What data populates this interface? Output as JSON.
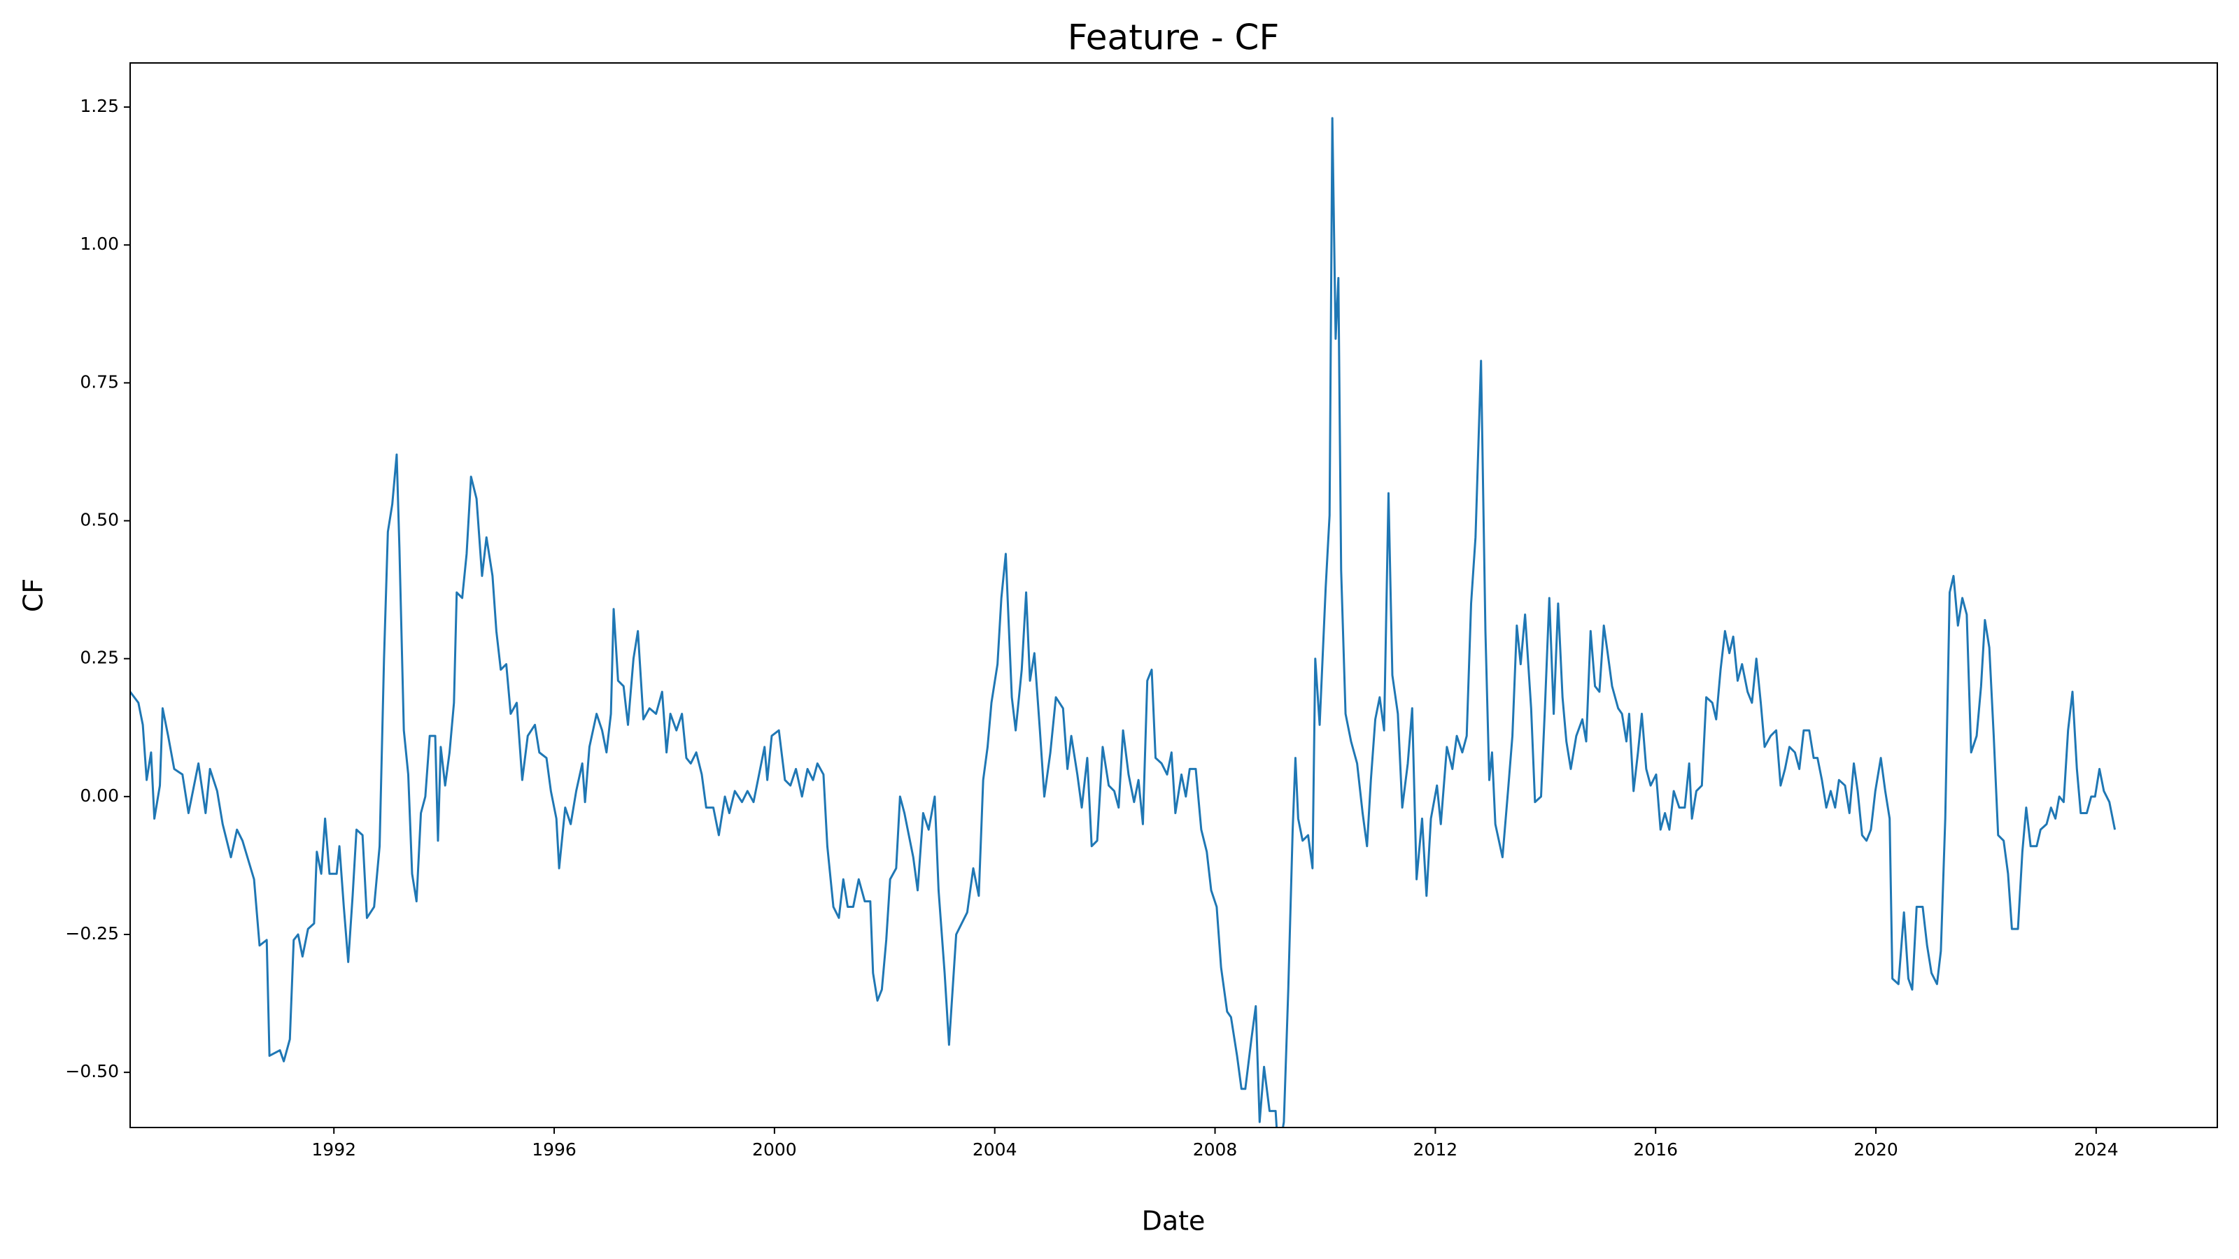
{
  "chart_data": {
    "type": "line",
    "title": "Feature - CF",
    "x_label": "Date",
    "y_label": "CF",
    "color": "#1f77b4",
    "xlim": [
      1988.3,
      2026.2
    ],
    "ylim": [
      -0.6,
      1.33
    ],
    "xticks": [
      1992,
      1996,
      2000,
      2004,
      2008,
      2012,
      2016,
      2020,
      2024
    ],
    "yticks": [
      {
        "value": -0.5,
        "label": "−0.50"
      },
      {
        "value": -0.25,
        "label": "−0.25"
      },
      {
        "value": 0,
        "label": "0.00"
      },
      0.25,
      {
        "value": 0.5,
        "label": "0.50"
      },
      0.75,
      {
        "value": 1,
        "label": "1.00"
      },
      1.25
    ],
    "x": [
      1988.3,
      1988.45,
      1988.53,
      1988.6,
      1988.68,
      1988.74,
      1988.84,
      1988.89,
      1988.99,
      1989.1,
      1989.25,
      1989.36,
      1989.54,
      1989.67,
      1989.75,
      1989.88,
      1989.98,
      1990.13,
      1990.24,
      1990.34,
      1990.55,
      1990.65,
      1990.78,
      1990.83,
      1991.02,
      1991.09,
      1991.2,
      1991.27,
      1991.35,
      1991.43,
      1991.53,
      1991.64,
      1991.69,
      1991.77,
      1991.84,
      1991.92,
      1992.05,
      1992.1,
      1992.18,
      1992.26,
      1992.34,
      1992.41,
      1992.52,
      1992.6,
      1992.73,
      1992.83,
      1992.91,
      1992.98,
      1993.06,
      1993.14,
      1993.19,
      1993.27,
      1993.35,
      1993.42,
      1993.5,
      1993.58,
      1993.66,
      1993.74,
      1993.84,
      1993.89,
      1993.94,
      1994.02,
      1994.1,
      1994.18,
      1994.23,
      1994.33,
      1994.41,
      1994.49,
      1994.59,
      1994.69,
      1994.77,
      1994.88,
      1994.95,
      1995.03,
      1995.13,
      1995.21,
      1995.32,
      1995.42,
      1995.52,
      1995.65,
      1995.73,
      1995.86,
      1995.94,
      1996.04,
      1996.09,
      1996.2,
      1996.3,
      1996.4,
      1996.51,
      1996.56,
      1996.64,
      1996.77,
      1996.87,
      1996.95,
      1997.03,
      1997.08,
      1997.16,
      1997.26,
      1997.34,
      1997.44,
      1997.52,
      1997.62,
      1997.73,
      1997.85,
      1997.96,
      1998.04,
      1998.11,
      1998.22,
      1998.32,
      1998.4,
      1998.48,
      1998.58,
      1998.68,
      1998.76,
      1998.89,
      1998.99,
      1999.1,
      1999.18,
      1999.28,
      1999.41,
      1999.51,
      1999.62,
      1999.72,
      1999.82,
      1999.87,
      1999.95,
      2000.08,
      2000.19,
      2000.29,
      2000.39,
      2000.5,
      2000.6,
      2000.7,
      2000.78,
      2000.89,
      2000.96,
      2001.07,
      2001.17,
      2001.25,
      2001.33,
      2001.43,
      2001.53,
      2001.64,
      2001.74,
      2001.79,
      2001.87,
      2001.95,
      2002.03,
      2002.1,
      2002.21,
      2002.28,
      2002.36,
      2002.44,
      2002.52,
      2002.6,
      2002.7,
      2002.8,
      2002.91,
      2002.98,
      2003.09,
      2003.17,
      2003.3,
      2003.4,
      2003.5,
      2003.61,
      2003.71,
      2003.79,
      2003.87,
      2003.94,
      2004.05,
      2004.12,
      2004.2,
      2004.31,
      2004.38,
      2004.49,
      2004.57,
      2004.64,
      2004.72,
      2004.82,
      2004.9,
      2005.01,
      2005.11,
      2005.24,
      2005.32,
      2005.39,
      2005.5,
      2005.58,
      2005.68,
      2005.76,
      2005.86,
      2005.96,
      2006.07,
      2006.17,
      2006.25,
      2006.33,
      2006.43,
      2006.53,
      2006.61,
      2006.69,
      2006.77,
      2006.85,
      2006.92,
      2007.03,
      2007.13,
      2007.21,
      2007.28,
      2007.39,
      2007.47,
      2007.54,
      2007.65,
      2007.75,
      2007.85,
      2007.93,
      2008.03,
      2008.11,
      2008.22,
      2008.29,
      2008.4,
      2008.48,
      2008.55,
      2008.66,
      2008.74,
      2008.81,
      2008.89,
      2008.99,
      2009.1,
      2009.15,
      2009.25,
      2009.33,
      2009.41,
      2009.46,
      2009.51,
      2009.59,
      2009.69,
      2009.77,
      2009.82,
      2009.9,
      2010.01,
      2010.08,
      2010.13,
      2010.19,
      2010.24,
      2010.29,
      2010.37,
      2010.47,
      2010.58,
      2010.68,
      2010.76,
      2010.83,
      2010.91,
      2010.99,
      2011.07,
      2011.15,
      2011.22,
      2011.32,
      2011.4,
      2011.5,
      2011.58,
      2011.66,
      2011.76,
      2011.84,
      2011.92,
      2012.03,
      2012.1,
      2012.21,
      2012.31,
      2012.39,
      2012.49,
      2012.57,
      2012.65,
      2012.73,
      2012.83,
      2012.91,
      2012.98,
      2013.03,
      2013.09,
      2013.22,
      2013.32,
      2013.4,
      2013.48,
      2013.55,
      2013.63,
      2013.74,
      2013.81,
      2013.92,
      2013.99,
      2014.07,
      2014.15,
      2014.23,
      2014.31,
      2014.38,
      2014.46,
      2014.56,
      2014.67,
      2014.74,
      2014.82,
      2014.9,
      2014.98,
      2015.06,
      2015.13,
      2015.21,
      2015.32,
      2015.39,
      2015.47,
      2015.52,
      2015.6,
      2015.68,
      2015.75,
      2015.83,
      2015.91,
      2016.01,
      2016.09,
      2016.17,
      2016.25,
      2016.33,
      2016.43,
      2016.53,
      2016.61,
      2016.66,
      2016.74,
      2016.84,
      2016.92,
      2017.03,
      2017.1,
      2017.18,
      2017.26,
      2017.34,
      2017.41,
      2017.49,
      2017.57,
      2017.67,
      2017.75,
      2017.83,
      2017.91,
      2017.98,
      2018.09,
      2018.19,
      2018.27,
      2018.35,
      2018.43,
      2018.53,
      2018.61,
      2018.69,
      2018.79,
      2018.87,
      2018.94,
      2019.02,
      2019.1,
      2019.18,
      2019.26,
      2019.33,
      2019.44,
      2019.52,
      2019.6,
      2019.67,
      2019.75,
      2019.83,
      2019.91,
      2019.99,
      2020.09,
      2020.17,
      2020.25,
      2020.3,
      2020.41,
      2020.51,
      2020.59,
      2020.66,
      2020.74,
      2020.85,
      2020.93,
      2021.01,
      2021.11,
      2021.18,
      2021.26,
      2021.34,
      2021.41,
      2021.49,
      2021.57,
      2021.65,
      2021.73,
      2021.83,
      2021.91,
      2021.98,
      2022.06,
      2022.14,
      2022.22,
      2022.32,
      2022.4,
      2022.47,
      2022.58,
      2022.66,
      2022.73,
      2022.81,
      2022.92,
      2022.99,
      2023.1,
      2023.18,
      2023.26,
      2023.33,
      2023.41,
      2023.49,
      2023.57,
      2023.65,
      2023.72,
      2023.83,
      2023.91,
      2023.98,
      2024.06,
      2024.14,
      2024.24,
      2024.34
    ],
    "values": [
      0.19,
      0.17,
      0.13,
      0.03,
      0.08,
      -0.04,
      0.02,
      0.16,
      0.11,
      0.05,
      0.04,
      -0.03,
      0.06,
      -0.03,
      0.05,
      0.01,
      -0.05,
      -0.11,
      -0.06,
      -0.08,
      -0.15,
      -0.27,
      -0.26,
      -0.47,
      -0.46,
      -0.48,
      -0.44,
      -0.26,
      -0.25,
      -0.29,
      -0.24,
      -0.23,
      -0.1,
      -0.14,
      -0.04,
      -0.14,
      -0.14,
      -0.09,
      -0.2,
      -0.3,
      -0.18,
      -0.06,
      -0.07,
      -0.22,
      -0.2,
      -0.09,
      0.25,
      0.48,
      0.53,
      0.62,
      0.45,
      0.12,
      0.04,
      -0.14,
      -0.19,
      -0.03,
      0.0,
      0.11,
      0.11,
      -0.08,
      0.09,
      0.02,
      0.08,
      0.17,
      0.37,
      0.36,
      0.44,
      0.58,
      0.54,
      0.4,
      0.47,
      0.4,
      0.3,
      0.23,
      0.24,
      0.15,
      0.17,
      0.03,
      0.11,
      0.13,
      0.08,
      0.07,
      0.01,
      -0.04,
      -0.13,
      -0.02,
      -0.05,
      0.01,
      0.06,
      -0.01,
      0.09,
      0.15,
      0.12,
      0.08,
      0.15,
      0.34,
      0.21,
      0.2,
      0.13,
      0.25,
      0.3,
      0.14,
      0.16,
      0.15,
      0.19,
      0.08,
      0.15,
      0.12,
      0.15,
      0.07,
      0.06,
      0.08,
      0.04,
      -0.02,
      -0.02,
      -0.07,
      0.0,
      -0.03,
      0.01,
      -0.01,
      0.01,
      -0.01,
      0.04,
      0.09,
      0.03,
      0.11,
      0.12,
      0.03,
      0.02,
      0.05,
      0.0,
      0.05,
      0.03,
      0.06,
      0.04,
      -0.09,
      -0.2,
      -0.22,
      -0.15,
      -0.2,
      -0.2,
      -0.15,
      -0.19,
      -0.19,
      -0.32,
      -0.37,
      -0.35,
      -0.26,
      -0.15,
      -0.13,
      0.0,
      -0.03,
      -0.07,
      -0.11,
      -0.17,
      -0.03,
      -0.06,
      0.0,
      -0.17,
      -0.32,
      -0.45,
      -0.25,
      -0.23,
      -0.21,
      -0.13,
      -0.18,
      0.03,
      0.09,
      0.17,
      0.24,
      0.36,
      0.44,
      0.18,
      0.12,
      0.23,
      0.37,
      0.21,
      0.26,
      0.12,
      0.0,
      0.08,
      0.18,
      0.16,
      0.05,
      0.11,
      0.04,
      -0.02,
      0.07,
      -0.09,
      -0.08,
      0.09,
      0.02,
      0.01,
      -0.02,
      0.12,
      0.04,
      -0.01,
      0.03,
      -0.05,
      0.21,
      0.23,
      0.07,
      0.06,
      0.04,
      0.08,
      -0.03,
      0.04,
      0.0,
      0.05,
      0.05,
      -0.06,
      -0.1,
      -0.17,
      -0.2,
      -0.31,
      -0.39,
      -0.4,
      -0.47,
      -0.53,
      -0.53,
      -0.44,
      -0.38,
      -0.59,
      -0.49,
      -0.57,
      -0.57,
      -0.65,
      -0.59,
      -0.35,
      -0.06,
      0.07,
      -0.04,
      -0.08,
      -0.07,
      -0.13,
      0.25,
      0.13,
      0.38,
      0.51,
      1.23,
      0.83,
      0.94,
      0.41,
      0.15,
      0.1,
      0.06,
      -0.03,
      -0.09,
      0.03,
      0.14,
      0.18,
      0.12,
      0.55,
      0.22,
      0.15,
      -0.02,
      0.06,
      0.16,
      -0.15,
      -0.04,
      -0.18,
      -0.04,
      0.02,
      -0.05,
      0.09,
      0.05,
      0.11,
      0.08,
      0.11,
      0.35,
      0.47,
      0.79,
      0.3,
      0.03,
      0.08,
      -0.05,
      -0.11,
      0.01,
      0.11,
      0.31,
      0.24,
      0.33,
      0.16,
      -0.01,
      0.0,
      0.16,
      0.36,
      0.15,
      0.35,
      0.18,
      0.1,
      0.05,
      0.11,
      0.14,
      0.1,
      0.3,
      0.2,
      0.19,
      0.31,
      0.26,
      0.2,
      0.16,
      0.15,
      0.1,
      0.15,
      0.01,
      0.08,
      0.15,
      0.05,
      0.02,
      0.04,
      -0.06,
      -0.03,
      -0.06,
      0.01,
      -0.02,
      -0.02,
      0.06,
      -0.04,
      0.01,
      0.02,
      0.18,
      0.17,
      0.14,
      0.23,
      0.3,
      0.26,
      0.29,
      0.21,
      0.24,
      0.19,
      0.17,
      0.25,
      0.17,
      0.09,
      0.11,
      0.12,
      0.02,
      0.05,
      0.09,
      0.08,
      0.05,
      0.12,
      0.12,
      0.07,
      0.07,
      0.03,
      -0.02,
      0.01,
      -0.02,
      0.03,
      0.02,
      -0.03,
      0.06,
      0.01,
      -0.07,
      -0.08,
      -0.06,
      0.01,
      0.07,
      0.01,
      -0.04,
      -0.33,
      -0.34,
      -0.21,
      -0.33,
      -0.35,
      -0.2,
      -0.2,
      -0.27,
      -0.32,
      -0.34,
      -0.28,
      -0.04,
      0.37,
      0.4,
      0.31,
      0.36,
      0.33,
      0.08,
      0.11,
      0.2,
      0.32,
      0.27,
      0.11,
      -0.07,
      -0.08,
      -0.14,
      -0.24,
      -0.24,
      -0.1,
      -0.02,
      -0.09,
      -0.09,
      -0.06,
      -0.05,
      -0.02,
      -0.04,
      0.0,
      -0.01,
      0.12,
      0.19,
      0.05,
      -0.03,
      -0.03,
      0.0,
      0.0,
      0.05,
      0.01,
      -0.01,
      -0.06
    ]
  }
}
